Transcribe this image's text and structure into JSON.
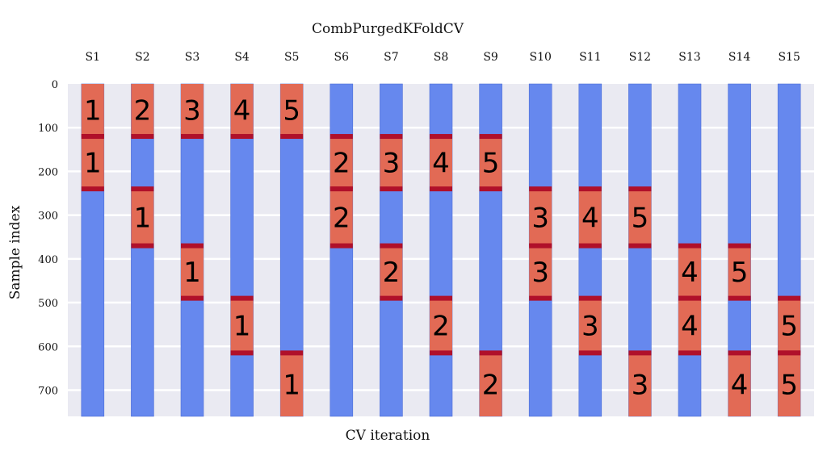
{
  "chart_data": {
    "type": "bar",
    "title": "CombPurgedKFoldCV",
    "xlabel": "CV iteration",
    "ylabel": "Sample index",
    "ylim": [
      760,
      0
    ],
    "y_ticks": [
      0,
      100,
      200,
      300,
      400,
      500,
      600,
      700
    ],
    "grid": true,
    "inverted_y": true,
    "categories": [
      "S1",
      "S2",
      "S3",
      "S4",
      "S5",
      "S6",
      "S7",
      "S8",
      "S9",
      "S10",
      "S11",
      "S12",
      "S13",
      "S14",
      "S15"
    ],
    "total_samples": 760,
    "colors": {
      "train": "#6688ee",
      "test": "#e26a55",
      "purge": "#b0102a",
      "background": "#eaeaf2",
      "grid": "#ffffff"
    },
    "folds": [
      {
        "id": 1,
        "start": 0,
        "end": 120
      },
      {
        "id": 2,
        "start": 120,
        "end": 240
      },
      {
        "id": 3,
        "start": 240,
        "end": 370
      },
      {
        "id": 4,
        "start": 370,
        "end": 490
      },
      {
        "id": 5,
        "start": 490,
        "end": 615
      },
      {
        "id": 6,
        "start": 615,
        "end": 760
      }
    ],
    "splits": [
      {
        "name": "S1",
        "test_folds": [
          1,
          2
        ],
        "labels": [
          "1",
          "1"
        ]
      },
      {
        "name": "S2",
        "test_folds": [
          1,
          3
        ],
        "labels": [
          "2",
          "1"
        ]
      },
      {
        "name": "S3",
        "test_folds": [
          1,
          4
        ],
        "labels": [
          "3",
          "1"
        ]
      },
      {
        "name": "S4",
        "test_folds": [
          1,
          5
        ],
        "labels": [
          "4",
          "1"
        ]
      },
      {
        "name": "S5",
        "test_folds": [
          1,
          6
        ],
        "labels": [
          "5",
          "1"
        ]
      },
      {
        "name": "S6",
        "test_folds": [
          2,
          3
        ],
        "labels": [
          "2",
          "2"
        ]
      },
      {
        "name": "S7",
        "test_folds": [
          2,
          4
        ],
        "labels": [
          "3",
          "2"
        ]
      },
      {
        "name": "S8",
        "test_folds": [
          2,
          5
        ],
        "labels": [
          "4",
          "2"
        ]
      },
      {
        "name": "S9",
        "test_folds": [
          2,
          6
        ],
        "labels": [
          "5",
          "2"
        ]
      },
      {
        "name": "S10",
        "test_folds": [
          3,
          4
        ],
        "labels": [
          "3",
          "3"
        ]
      },
      {
        "name": "S11",
        "test_folds": [
          3,
          5
        ],
        "labels": [
          "4",
          "3"
        ]
      },
      {
        "name": "S12",
        "test_folds": [
          3,
          6
        ],
        "labels": [
          "5",
          "3"
        ]
      },
      {
        "name": "S13",
        "test_folds": [
          4,
          5
        ],
        "labels": [
          "4",
          "4"
        ]
      },
      {
        "name": "S14",
        "test_folds": [
          4,
          6
        ],
        "labels": [
          "5",
          "4"
        ]
      },
      {
        "name": "S15",
        "test_folds": [
          5,
          6
        ],
        "labels": [
          "5",
          "5"
        ]
      }
    ]
  }
}
